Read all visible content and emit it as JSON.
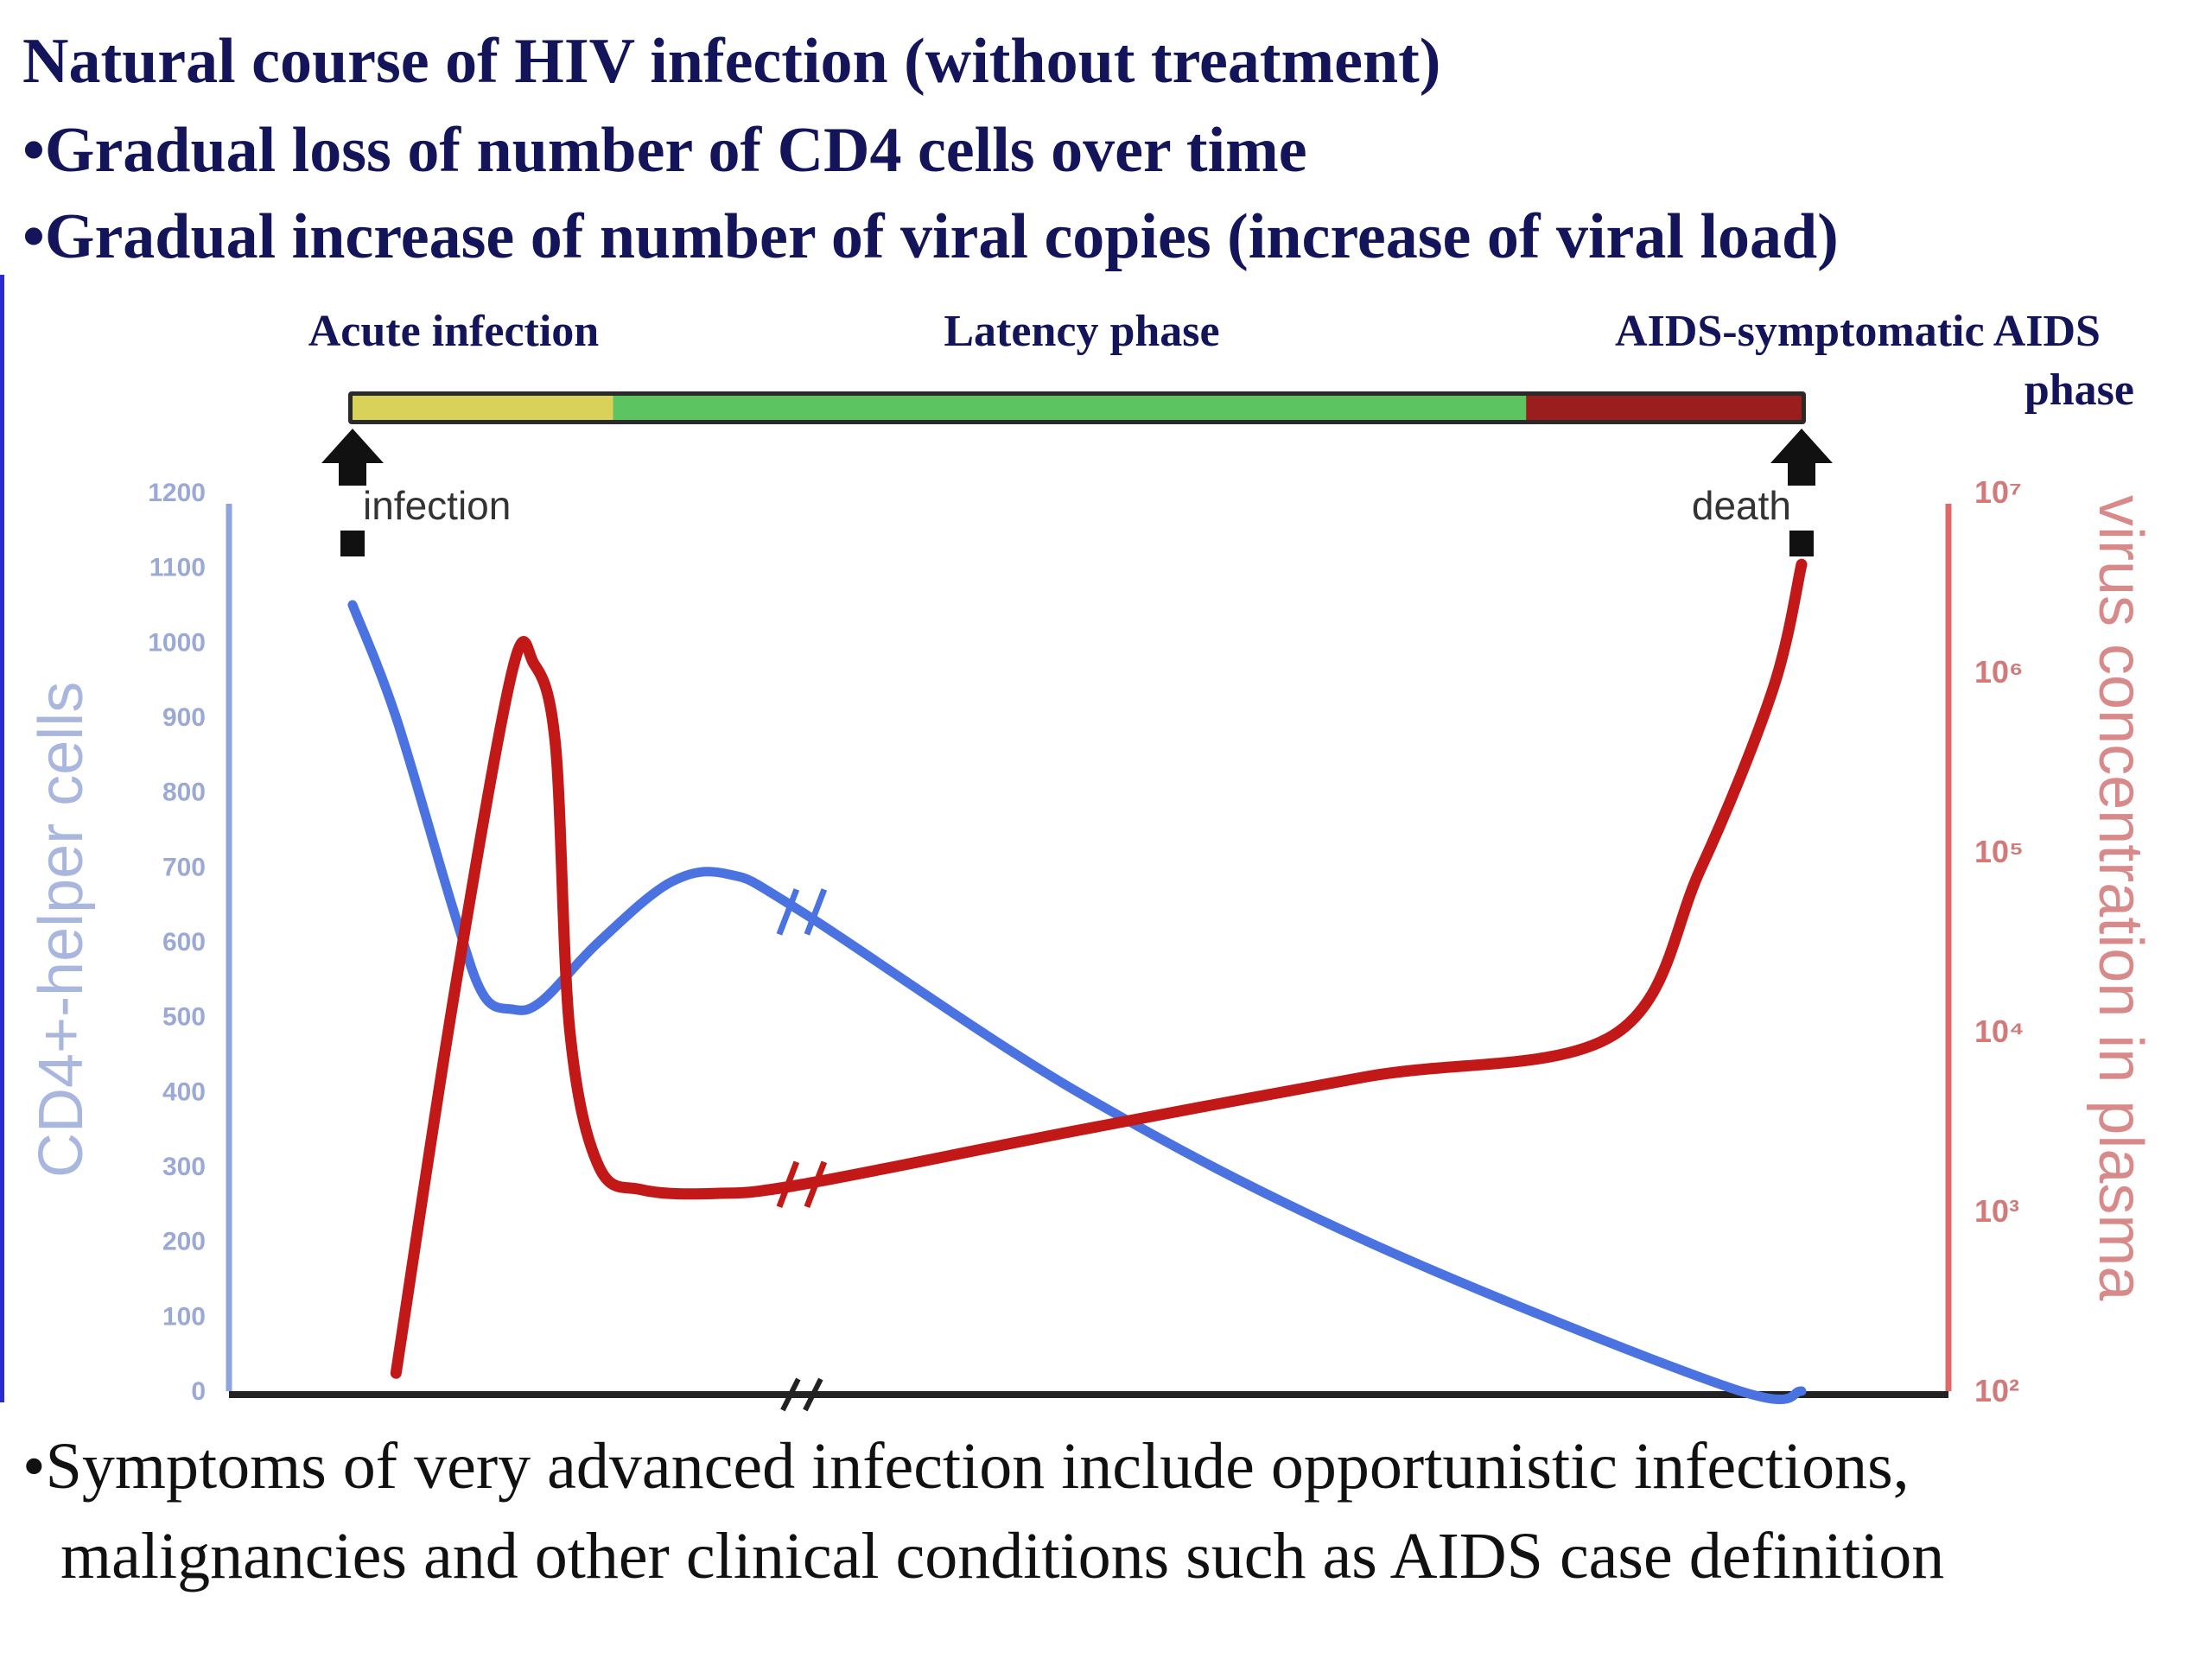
{
  "slide": {
    "title": "Natural course of HIV infection (without treatment)",
    "bullets": [
      "•Gradual loss of number of CD4 cells over time",
      "•Gradual increase of number of viral copies (increase of viral load)"
    ],
    "footer_lines": [
      "•Symptoms of very advanced infection include opportunistic infections,",
      "malignancies and other clinical conditions such as AIDS case definition"
    ]
  },
  "chart_data": {
    "type": "line",
    "phases": [
      {
        "label": "Acute infection",
        "color": "#d8d25a"
      },
      {
        "label": "Latency phase",
        "color": "#5cc460"
      },
      {
        "label": "AIDS-symptomatic AIDS",
        "label_line2": "phase",
        "color": "#9a1e1e"
      }
    ],
    "phase_boundaries": [
      0,
      0.18,
      0.81,
      1.0
    ],
    "markers": [
      {
        "label": "infection",
        "x": 0
      },
      {
        "label": "death",
        "x": 1
      }
    ],
    "x_axis": {
      "range": [
        0,
        1
      ],
      "ticks": [],
      "break_at": 0.31
    },
    "y_left": {
      "label": "CD4+-helper cells",
      "range": [
        0,
        1200
      ],
      "ticks": [
        "0",
        "100",
        "200",
        "300",
        "400",
        "500",
        "600",
        "700",
        "800",
        "900",
        "1000",
        "1100",
        "1200"
      ],
      "color": "#5a7ad8"
    },
    "y_right": {
      "label": "virus concentration in plasma",
      "scale": "log",
      "range_exp": [
        2,
        7
      ],
      "ticks": [
        "10²",
        "10³",
        "10⁴",
        "10⁵",
        "10⁶",
        "10⁷"
      ],
      "color": "#c82020"
    },
    "series": [
      {
        "axis": "left",
        "color": "#4a72e0",
        "x": [
          0.0,
          0.03,
          0.07,
          0.09,
          0.11,
          0.13,
          0.17,
          0.22,
          0.26,
          0.31,
          0.5,
          0.7,
          0.95,
          1.0
        ],
        "values": [
          1050,
          900,
          640,
          530,
          510,
          520,
          600,
          680,
          690,
          640,
          400,
          200,
          5,
          0
        ]
      },
      {
        "axis": "right",
        "color": "#c21818",
        "x": [
          0.03,
          0.07,
          0.11,
          0.125,
          0.14,
          0.15,
          0.17,
          0.2,
          0.25,
          0.31,
          0.5,
          0.7,
          0.87,
          0.93,
          0.98,
          1.0
        ],
        "values": [
          2.1,
          4.2,
          6.0,
          6.05,
          5.6,
          4.0,
          3.25,
          3.12,
          3.1,
          3.15,
          3.45,
          3.75,
          3.98,
          4.9,
          5.9,
          6.6
        ]
      }
    ]
  }
}
